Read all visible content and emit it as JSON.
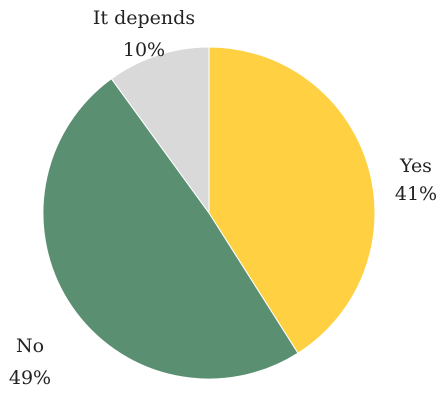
{
  "chart_data": {
    "type": "pie",
    "start_angle_deg": 0,
    "direction": "clockwise",
    "slices": [
      {
        "label": "Yes",
        "value": 41,
        "value_label": "41%",
        "color": "#FED042"
      },
      {
        "label": "No",
        "value": 49,
        "value_label": "49%",
        "color": "#5A8F72"
      },
      {
        "label": "It depends",
        "value": 10,
        "value_label": "10%",
        "color": "#D9D9D9"
      }
    ]
  }
}
